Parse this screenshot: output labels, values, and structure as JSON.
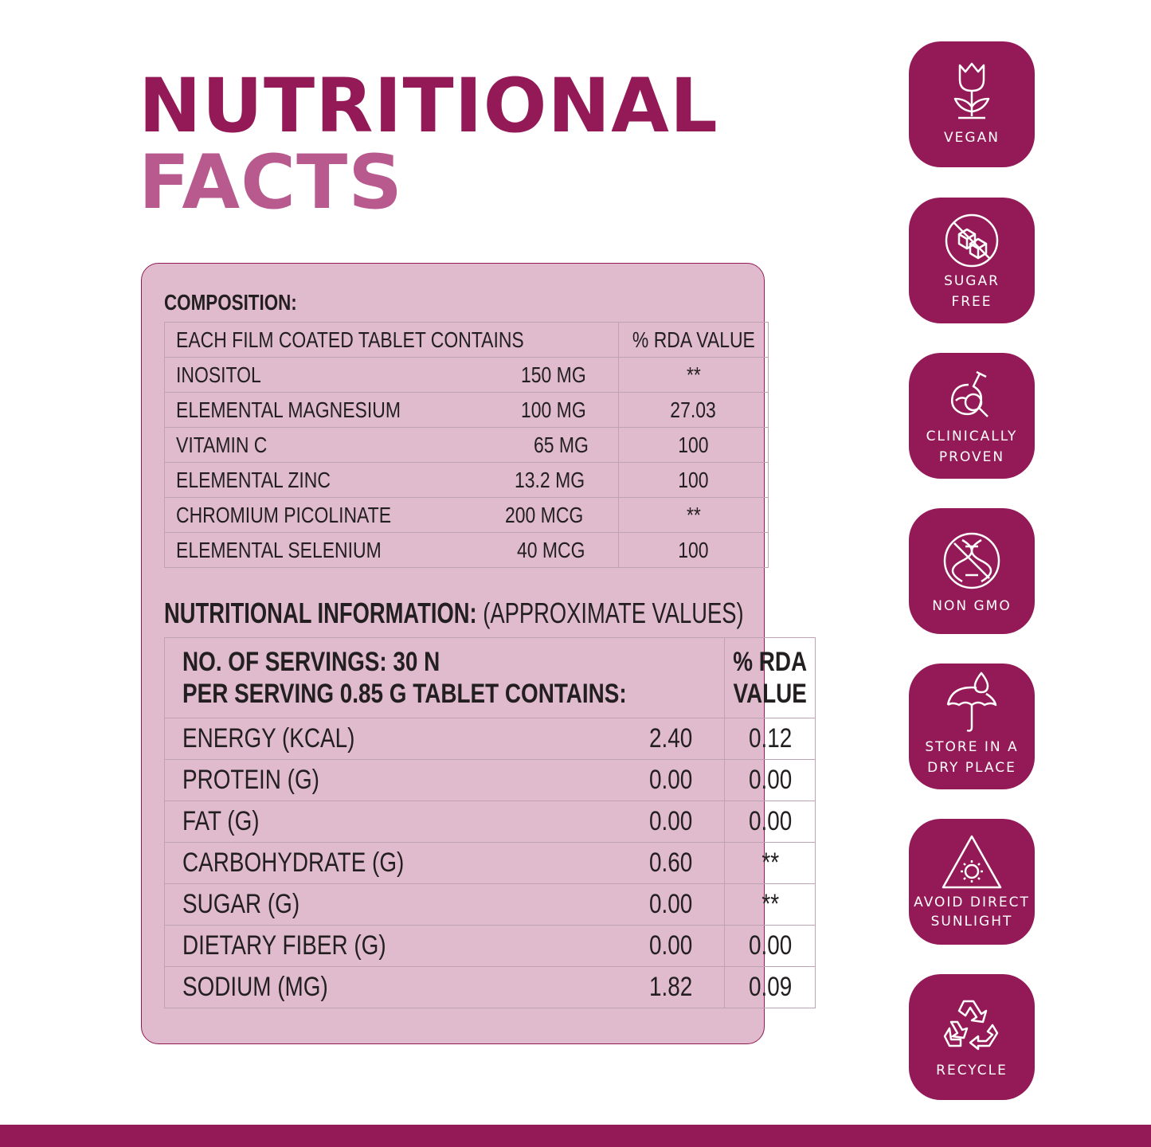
{
  "title": {
    "line1": "NUTRITIONAL",
    "line2": "FACTS"
  },
  "composition": {
    "label": "COMPOSITION:",
    "header": {
      "col1": "EACH FILM COATED TABLET CONTAINS",
      "col2": "% RDA VALUE"
    },
    "rows": [
      {
        "name": "INOSITOL",
        "amount": "150 MG",
        "rda": "**"
      },
      {
        "name": "ELEMENTAL MAGNESIUM",
        "amount": "100 MG",
        "rda": "27.03"
      },
      {
        "name": "VITAMIN C",
        "amount": "65 MG",
        "rda": "100"
      },
      {
        "name": "ELEMENTAL ZINC",
        "amount": "13.2 MG",
        "rda": "100"
      },
      {
        "name": "CHROMIUM PICOLINATE",
        "amount": "200 MCG",
        "rda": "**"
      },
      {
        "name": "ELEMENTAL SELENIUM",
        "amount": "40 MCG",
        "rda": "100"
      }
    ]
  },
  "nutrition": {
    "label": "NUTRITIONAL INFORMATION:",
    "label_suffix": "(APPROXIMATE VALUES)",
    "header": {
      "line1": "NO. OF SERVINGS: 30 N",
      "line2": "PER SERVING 0.85 G TABLET CONTAINS:",
      "rda_line1": "% RDA",
      "rda_line2": "VALUE"
    },
    "rows": [
      {
        "name": "ENERGY (KCAL)",
        "amount": "2.40",
        "rda": "0.12"
      },
      {
        "name": "PROTEIN (G)",
        "amount": "0.00",
        "rda": "0.00"
      },
      {
        "name": "FAT (G)",
        "amount": "0.00",
        "rda": "0.00"
      },
      {
        "name": "CARBOHYDRATE (G)",
        "amount": "0.60",
        "rda": "**"
      },
      {
        "name": "SUGAR (G)",
        "amount": "0.00",
        "rda": "**"
      },
      {
        "name": "DIETARY FIBER (G)",
        "amount": "0.00",
        "rda": "0.00"
      },
      {
        "name": "SODIUM (MG)",
        "amount": "1.82",
        "rda": "0.09"
      }
    ]
  },
  "badges": [
    {
      "icon": "flower-icon",
      "line1": "VEGAN",
      "line2": ""
    },
    {
      "icon": "no-sugar-cubes-icon",
      "line1": "SUGAR",
      "line2": "FREE"
    },
    {
      "icon": "flask-magnifier-icon",
      "line1": "CLINICALLY",
      "line2": "PROVEN"
    },
    {
      "icon": "no-dna-icon",
      "line1": "NON GMO",
      "line2": ""
    },
    {
      "icon": "umbrella-drop-icon",
      "line1": "STORE IN A",
      "line2": "DRY PLACE"
    },
    {
      "icon": "sun-warning-icon",
      "line1": "AVOID DIRECT",
      "line2": "SUNLIGHT"
    },
    {
      "icon": "recycle-icon",
      "line1": "RECYCLE",
      "line2": ""
    }
  ],
  "colors": {
    "brand": "#941a57",
    "brand_light": "#b85a8e",
    "panel": "#dfbbcd"
  }
}
